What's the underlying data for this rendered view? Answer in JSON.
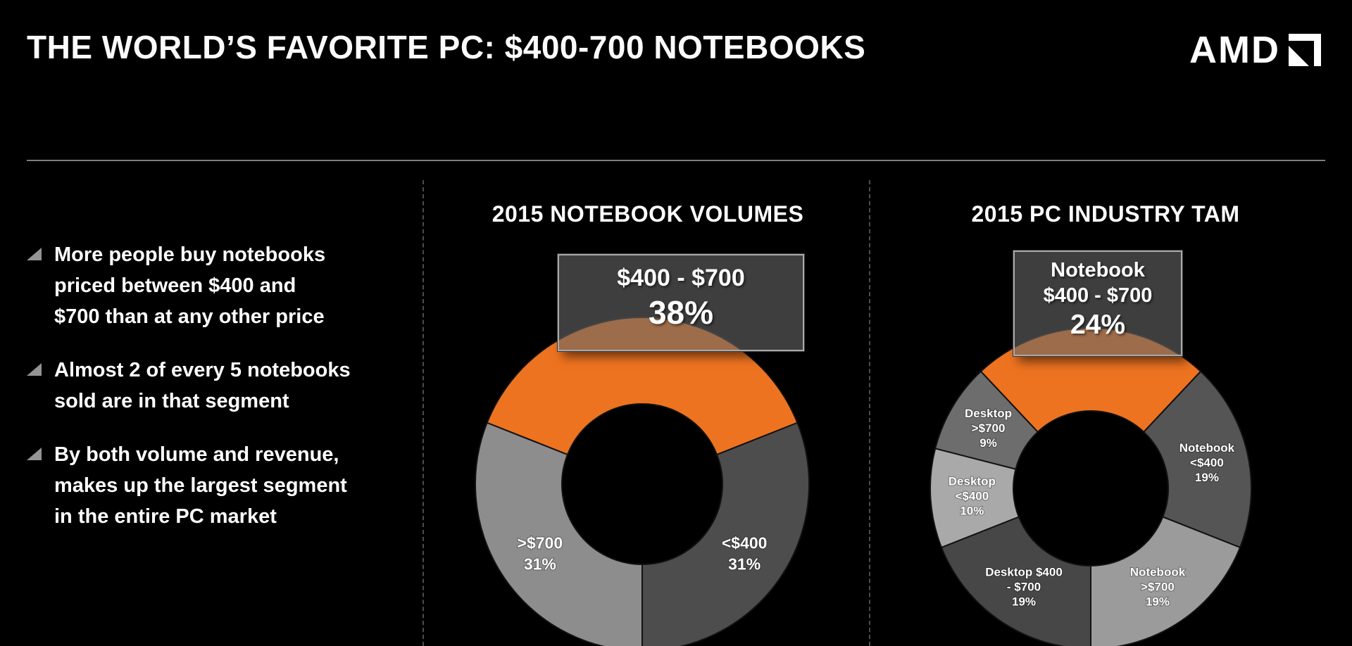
{
  "slide": {
    "title": "THE WORLD’S FAVORITE PC: $400-700 NOTEBOOKS",
    "brand": "AMD"
  },
  "bullets": [
    {
      "lines": [
        "More people buy notebooks",
        "priced between $400 and",
        "$700 than at any other price"
      ]
    },
    {
      "lines": [
        "Almost 2 of every 5 notebooks",
        "sold are in that segment"
      ]
    },
    {
      "lines": [
        "By both volume and revenue,",
        "makes up the largest segment",
        "in the entire PC market"
      ]
    }
  ],
  "chart_data": [
    {
      "type": "pie",
      "variant": "donut",
      "title": "2015 NOTEBOOK VOLUMES",
      "legend_position": "none",
      "accent_color": "#ee7320",
      "callout": {
        "lines": [
          "$400 - $700"
        ],
        "value": "38%"
      },
      "segments": [
        {
          "label": "$400 - $700",
          "value": 38,
          "color": "#ee7320",
          "label_lines": []
        },
        {
          "label": "<$400",
          "value": 31,
          "color": "#4d4d4d",
          "label_lines": [
            "<$400",
            "31%"
          ]
        },
        {
          "label": ">$700",
          "value": 31,
          "color": "#8d8d8d",
          "label_lines": [
            ">$700",
            "31%"
          ]
        }
      ]
    },
    {
      "type": "pie",
      "variant": "donut",
      "title": "2015 PC INDUSTRY TAM",
      "legend_position": "none",
      "accent_color": "#ee7320",
      "callout": {
        "lines": [
          "Notebook",
          "$400 - $700"
        ],
        "value": "24%"
      },
      "segments": [
        {
          "label": "Notebook $400 - $700",
          "value": 24,
          "color": "#ee7320",
          "label_lines": []
        },
        {
          "label": "Notebook <$400",
          "value": 19,
          "color": "#555555",
          "label_lines": [
            "Notebook",
            "<$400",
            "19%"
          ]
        },
        {
          "label": "Notebook >$700",
          "value": 19,
          "color": "#9b9b9b",
          "label_lines": [
            "Notebook",
            ">$700",
            "19%"
          ]
        },
        {
          "label": "Desktop $400 - $700",
          "value": 19,
          "color": "#474747",
          "label_lines": [
            "Desktop $400",
            "- $700",
            "19%"
          ]
        },
        {
          "label": "Desktop <$400",
          "value": 10,
          "color": "#a9a9a9",
          "label_lines": [
            "Desktop",
            "<$400",
            "10%"
          ]
        },
        {
          "label": "Desktop >$700",
          "value": 9,
          "color": "#6d6d6d",
          "label_lines": [
            "Desktop",
            ">$700",
            "9%"
          ]
        }
      ]
    }
  ]
}
